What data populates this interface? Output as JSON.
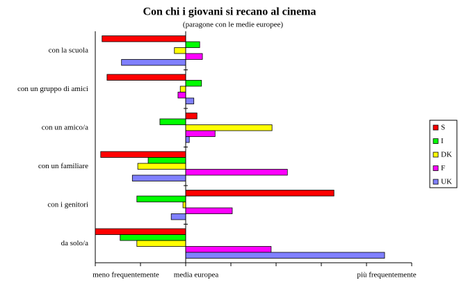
{
  "chart_data": {
    "type": "bar",
    "orientation": "horizontal",
    "title": "Con chi i giovani si recano al cinema",
    "subtitle": "(paragone con le medie europee)",
    "categories": [
      "con la scuola",
      "con un gruppo di amici",
      "con un amico/a",
      "con un familiare",
      "con i genitori",
      "da solo/a"
    ],
    "series": [
      {
        "name": "S",
        "color": "#ff0000",
        "values": [
          -1.85,
          -1.74,
          0.25,
          -1.88,
          3.28,
          -2.0
        ]
      },
      {
        "name": "I",
        "color": "#00ff00",
        "values": [
          0.31,
          0.35,
          -0.57,
          -0.83,
          -1.08,
          -1.45
        ]
      },
      {
        "name": "DK",
        "color": "#ffff00",
        "values": [
          -0.25,
          -0.12,
          1.91,
          -1.06,
          -0.06,
          -1.08
        ]
      },
      {
        "name": "F",
        "color": "#ff00ff",
        "values": [
          0.37,
          -0.17,
          0.65,
          2.25,
          1.03,
          1.89
        ]
      },
      {
        "name": "UK",
        "color": "#8080ff",
        "values": [
          -1.42,
          0.18,
          0.08,
          -1.18,
          -0.32,
          4.4
        ]
      }
    ],
    "xlim": [
      -2,
      5
    ],
    "xticks": [
      -2,
      -1,
      0,
      1,
      2,
      3,
      4,
      5
    ],
    "scale_labels": [
      "meno frequentemente",
      "media europea",
      "più frequentemente"
    ],
    "legend": "right"
  }
}
